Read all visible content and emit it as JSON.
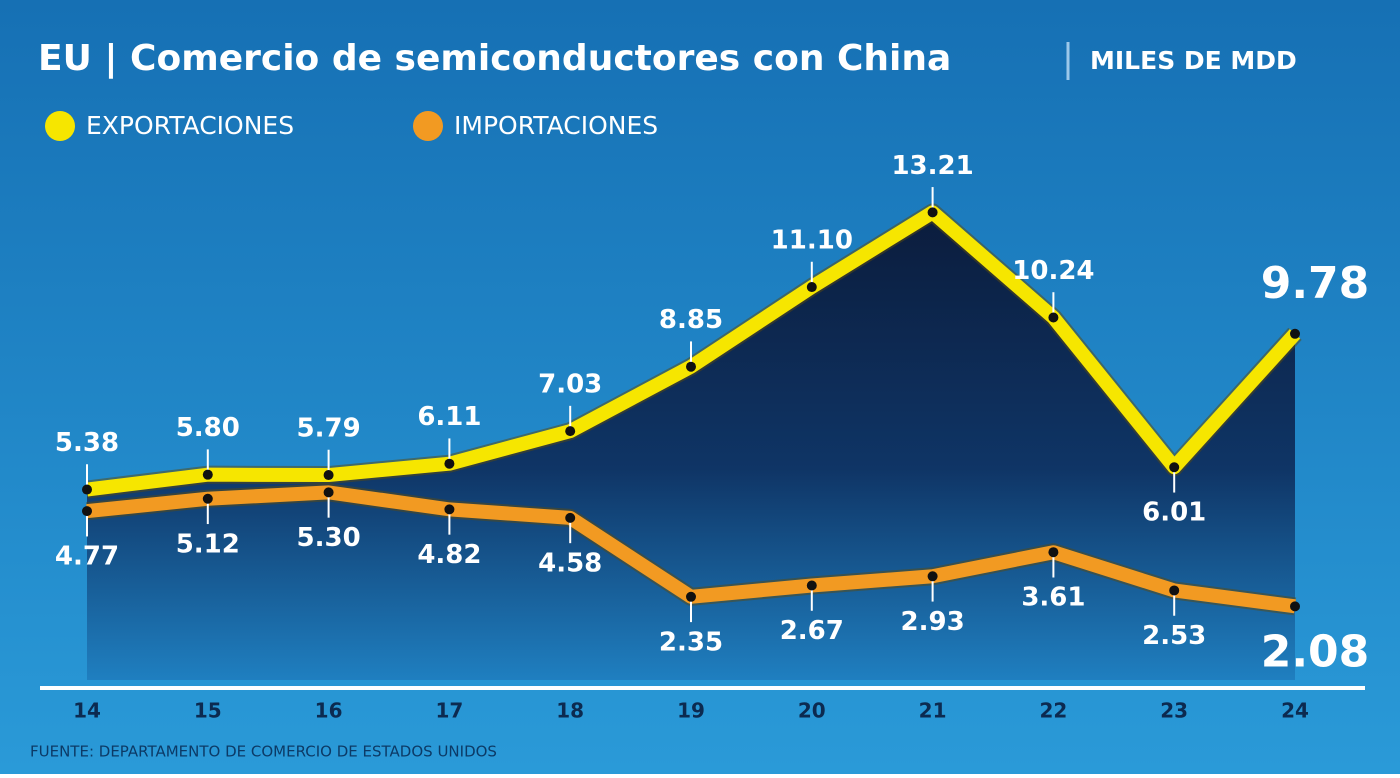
{
  "chart_data": {
    "type": "line",
    "title": "EU | Comercio de semiconductores con China",
    "units": "MILES DE MDD",
    "categories": [
      "14",
      "15",
      "16",
      "17",
      "18",
      "19",
      "20",
      "21",
      "22",
      "23",
      "24"
    ],
    "series": [
      {
        "name": "EXPORTACIONES",
        "color": "#f6e600",
        "values": [
          5.38,
          5.8,
          5.79,
          6.11,
          7.03,
          8.85,
          11.1,
          13.21,
          10.24,
          6.01,
          9.78
        ],
        "value_labels": [
          "5.38",
          "5.80",
          "5.79",
          "6.11",
          "7.03",
          "8.85",
          "11.10",
          "13.21",
          "10.24",
          "6.01",
          "9.78"
        ]
      },
      {
        "name": "IMPORTACIONES",
        "color": "#f29a22",
        "values": [
          4.77,
          5.12,
          5.3,
          4.82,
          4.58,
          2.35,
          2.67,
          2.93,
          3.61,
          2.53,
          2.08
        ],
        "value_labels": [
          "4.77",
          "5.12",
          "5.30",
          "4.82",
          "4.58",
          "2.35",
          "2.67",
          "2.93",
          "3.61",
          "2.53",
          "2.08"
        ]
      }
    ],
    "ylim": [
      0,
      15
    ],
    "source": "FUENTE: DEPARTAMENTO DE COMERCIO DE ESTADOS UNIDOS"
  }
}
